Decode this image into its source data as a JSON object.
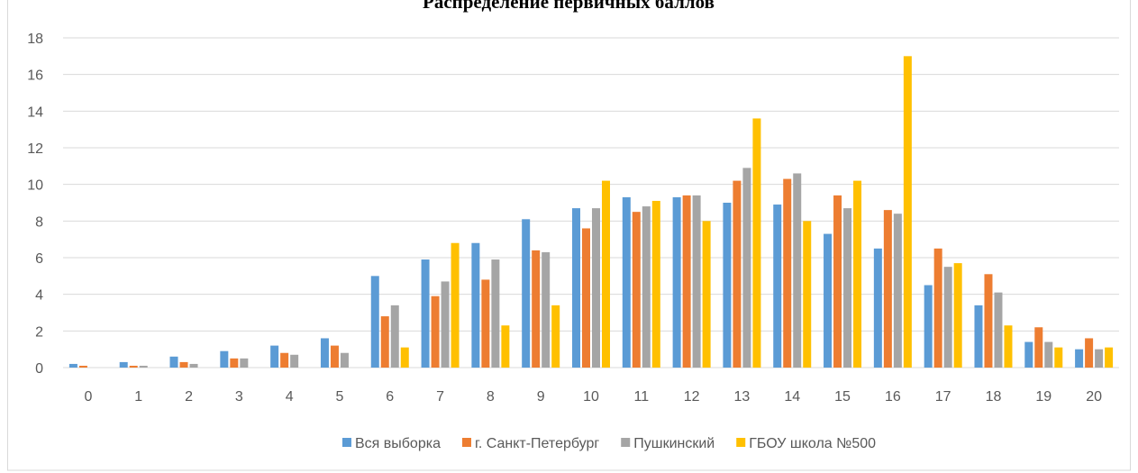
{
  "chart_data": {
    "type": "bar",
    "title": "Распределение первичных баллов",
    "categories": [
      "0",
      "1",
      "2",
      "3",
      "4",
      "5",
      "6",
      "7",
      "8",
      "9",
      "10",
      "11",
      "12",
      "13",
      "14",
      "15",
      "16",
      "17",
      "18",
      "19",
      "20"
    ],
    "series": [
      {
        "name": "Вся выборка",
        "color": "#5b9bd5",
        "values": [
          0.2,
          0.3,
          0.6,
          0.9,
          1.2,
          1.6,
          5.0,
          5.9,
          6.8,
          8.1,
          8.7,
          9.3,
          9.3,
          9.0,
          8.9,
          7.3,
          6.5,
          4.5,
          3.4,
          1.4,
          1.0
        ]
      },
      {
        "name": "г. Санкт-Петербург",
        "color": "#ed7d31",
        "values": [
          0.1,
          0.1,
          0.3,
          0.5,
          0.8,
          1.2,
          2.8,
          3.9,
          4.8,
          6.4,
          7.6,
          8.5,
          9.4,
          10.2,
          10.3,
          9.4,
          8.6,
          6.5,
          5.1,
          2.2,
          1.6
        ]
      },
      {
        "name": "Пушкинский",
        "color": "#a5a5a5",
        "values": [
          0,
          0.1,
          0.2,
          0.5,
          0.7,
          0.8,
          3.4,
          4.7,
          5.9,
          6.3,
          8.7,
          8.8,
          9.4,
          10.9,
          10.6,
          8.7,
          8.4,
          5.5,
          4.1,
          1.4,
          1.0
        ]
      },
      {
        "name": "ГБОУ школа №500",
        "color": "#ffc000",
        "values": [
          0,
          0,
          0,
          0,
          0,
          0,
          1.1,
          6.8,
          2.3,
          3.4,
          10.2,
          9.1,
          8.0,
          13.6,
          8.0,
          10.2,
          17.0,
          5.7,
          2.3,
          1.1,
          1.1
        ]
      }
    ],
    "ylim": [
      0,
      18
    ],
    "yticks": [
      0,
      2,
      4,
      6,
      8,
      10,
      12,
      14,
      16,
      18
    ],
    "grid": true,
    "legend": "bottom"
  }
}
